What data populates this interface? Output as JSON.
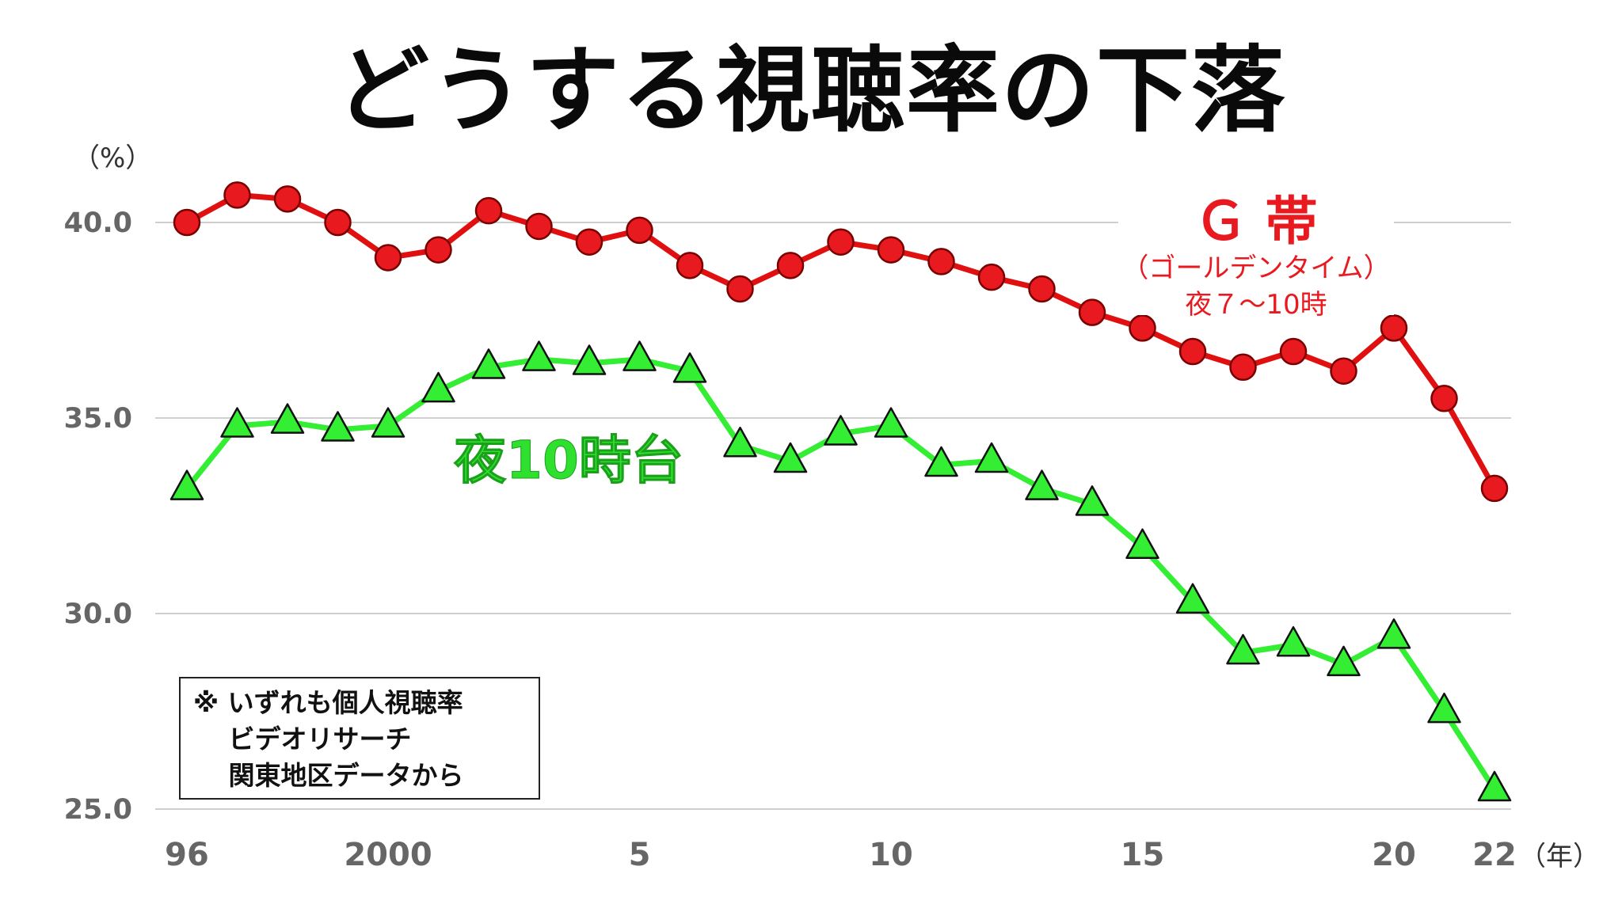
{
  "title": "どうする視聴率の下落",
  "note": {
    "lines": [
      "※ いずれも個人視聴率",
      "　 ビデオリサーチ",
      "　 関東地区データから"
    ]
  },
  "colors": {
    "gold_series": "#e8191f",
    "night_series": "#33ee33",
    "grid": "#bfbfbf"
  },
  "chart_data": {
    "type": "line",
    "y_unit": "（%）",
    "x_unit": "（年）",
    "ylim": [
      25.0,
      40.0
    ],
    "y_ticks": [
      {
        "value": 40.0,
        "label": "40.0"
      },
      {
        "value": 35.0,
        "label": "35.0"
      },
      {
        "value": 30.0,
        "label": "30.0"
      },
      {
        "value": 25.0,
        "label": "25.0"
      }
    ],
    "x": [
      1996,
      1997,
      1998,
      1999,
      2000,
      2001,
      2002,
      2003,
      2004,
      2005,
      2006,
      2007,
      2008,
      2009,
      2010,
      2011,
      2012,
      2013,
      2014,
      2015,
      2016,
      2017,
      2018,
      2019,
      2020,
      2021,
      2022
    ],
    "x_ticks": [
      {
        "value": 1996,
        "label": "96"
      },
      {
        "value": 2000,
        "label": "2000"
      },
      {
        "value": 2005,
        "label": "5"
      },
      {
        "value": 2010,
        "label": "10"
      },
      {
        "value": 2015,
        "label": "15"
      },
      {
        "value": 2020,
        "label": "20"
      },
      {
        "value": 2022,
        "label": "22"
      }
    ],
    "grid": true,
    "series": [
      {
        "name": "Ｇ 帯",
        "subtitle": [
          "（ゴールデンタイム）",
          "夜７～10時"
        ],
        "marker": "circle",
        "values": [
          40.0,
          40.7,
          40.6,
          40.0,
          39.1,
          39.3,
          40.3,
          39.9,
          39.5,
          39.8,
          38.9,
          38.3,
          38.9,
          39.5,
          39.3,
          39.0,
          38.6,
          38.3,
          37.7,
          37.3,
          36.7,
          36.3,
          36.7,
          36.2,
          37.3,
          35.5,
          33.2
        ]
      },
      {
        "name": "夜10時台",
        "marker": "triangle",
        "values": [
          33.2,
          34.8,
          34.9,
          34.7,
          34.8,
          35.7,
          36.3,
          36.5,
          36.4,
          36.5,
          36.2,
          34.3,
          33.9,
          34.6,
          34.8,
          33.8,
          33.9,
          33.2,
          32.8,
          31.7,
          30.3,
          29.0,
          29.2,
          28.7,
          29.4,
          27.5,
          25.5
        ]
      }
    ]
  }
}
